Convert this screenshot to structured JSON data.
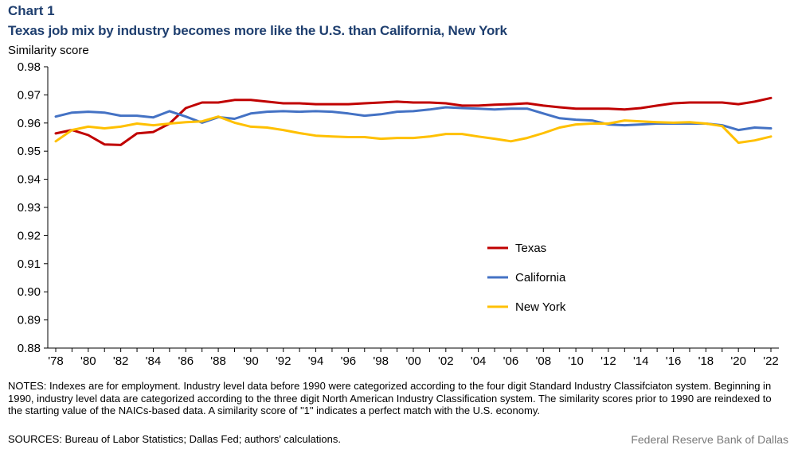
{
  "header": {
    "chart_number": "Chart 1",
    "title": "Texas job mix by industry becomes more like the U.S. than California, New York"
  },
  "footer": {
    "notes": "NOTES: Indexes are for employment. Industry level data before 1990 were categorized according to the four digit Standard Industry Classifciaton system. Beginning in 1990, industry level data are categorized according to the three digit North American Industry Classification system. The similarity scores prior to 1990 are reindexed to the starting value of the NAICs-based data. A similarity score of \"1\" indicates a perfect match with the U.S. economy.",
    "sources": "SOURCES: Bureau of Labor Statistics; Dallas Fed; authors' calculations.",
    "credit": "Federal Reserve Bank of Dallas"
  },
  "chart_data": {
    "type": "line",
    "title": "Texas job mix by industry becomes more like the U.S. than California, New York",
    "xlabel": "",
    "ylabel": "Similarity score",
    "ylim": [
      0.88,
      0.98
    ],
    "y_ticks": [
      "0.88",
      "0.89",
      "0.90",
      "0.91",
      "0.92",
      "0.93",
      "0.94",
      "0.95",
      "0.96",
      "0.97",
      "0.98"
    ],
    "x": [
      1978,
      1979,
      1980,
      1981,
      1982,
      1983,
      1984,
      1985,
      1986,
      1987,
      1988,
      1989,
      1990,
      1991,
      1992,
      1993,
      1994,
      1995,
      1996,
      1997,
      1998,
      1999,
      2000,
      2001,
      2002,
      2003,
      2004,
      2005,
      2006,
      2007,
      2008,
      2009,
      2010,
      2011,
      2012,
      2013,
      2014,
      2015,
      2016,
      2017,
      2018,
      2019,
      2020,
      2021,
      2022
    ],
    "x_tick_labels": [
      "'78",
      "'80",
      "'82",
      "'84",
      "'86",
      "'88",
      "'90",
      "'92",
      "'94",
      "'96",
      "'98",
      "'00",
      "'02",
      "'04",
      "'06",
      "'08",
      "'10",
      "'12",
      "'14",
      "'16",
      "'18",
      "'20",
      "'22"
    ],
    "legend_position": "center-right",
    "grid": false,
    "series": [
      {
        "name": "Texas",
        "color": "#c00000",
        "values": [
          0.9563,
          0.9575,
          0.9557,
          0.9524,
          0.9522,
          0.9563,
          0.9568,
          0.9598,
          0.9653,
          0.9673,
          0.9673,
          0.9682,
          0.9682,
          0.9676,
          0.967,
          0.967,
          0.9667,
          0.9667,
          0.9667,
          0.967,
          0.9673,
          0.9676,
          0.9673,
          0.9673,
          0.967,
          0.9662,
          0.9662,
          0.9665,
          0.9667,
          0.967,
          0.9662,
          0.9656,
          0.9651,
          0.9651,
          0.9651,
          0.9648,
          0.9653,
          0.9662,
          0.967,
          0.9673,
          0.9673,
          0.9673,
          0.9667,
          0.9676,
          0.9689
        ]
      },
      {
        "name": "California",
        "color": "#4472c4",
        "values": [
          0.9623,
          0.9637,
          0.964,
          0.9637,
          0.9626,
          0.9626,
          0.962,
          0.9642,
          0.9623,
          0.9601,
          0.9621,
          0.9615,
          0.9634,
          0.964,
          0.9642,
          0.964,
          0.9642,
          0.964,
          0.9634,
          0.9626,
          0.9631,
          0.964,
          0.9642,
          0.9648,
          0.9656,
          0.9653,
          0.9651,
          0.9648,
          0.9651,
          0.9651,
          0.9634,
          0.9617,
          0.9612,
          0.9609,
          0.9595,
          0.9592,
          0.9595,
          0.9598,
          0.9598,
          0.9598,
          0.9598,
          0.9592,
          0.9575,
          0.9584,
          0.9581
        ]
      },
      {
        "name": "New York",
        "color": "#ffc000",
        "values": [
          0.9535,
          0.9575,
          0.9587,
          0.9581,
          0.9587,
          0.9598,
          0.9592,
          0.9598,
          0.9603,
          0.9606,
          0.9623,
          0.9601,
          0.9587,
          0.9584,
          0.9575,
          0.9564,
          0.9555,
          0.9552,
          0.955,
          0.955,
          0.9544,
          0.9547,
          0.9547,
          0.9552,
          0.9561,
          0.9561,
          0.9552,
          0.9544,
          0.9535,
          0.9547,
          0.9564,
          0.9584,
          0.9595,
          0.9598,
          0.9598,
          0.9609,
          0.9606,
          0.9603,
          0.9601,
          0.9603,
          0.9598,
          0.9589,
          0.953,
          0.9538,
          0.9552
        ]
      }
    ]
  }
}
